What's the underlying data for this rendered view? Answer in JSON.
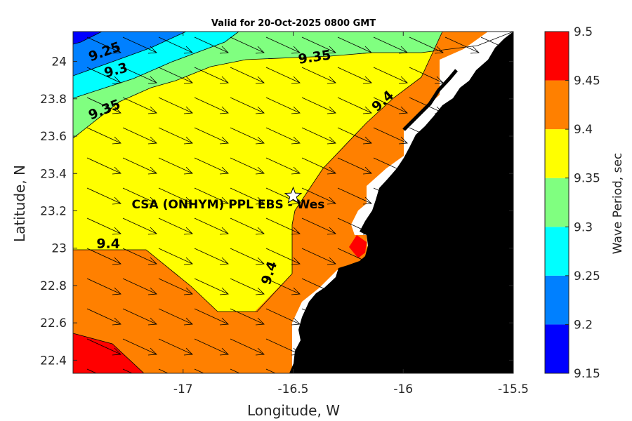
{
  "chart_data": {
    "type": "contour-map",
    "title": "Valid for 20-Oct-2025 0800 GMT",
    "xlabel": "Longitude, W",
    "ylabel": "Latitude, N",
    "xlim": [
      -17.5,
      -15.5
    ],
    "ylim": [
      22.33,
      24.16
    ],
    "xticks": [
      -17,
      -16.5,
      -16,
      -15.5
    ],
    "xtick_labels": [
      "-17",
      "-16.5",
      "-16",
      "-15.5"
    ],
    "yticks": [
      22.4,
      22.6,
      22.8,
      23.0,
      23.2,
      23.4,
      23.6,
      23.8,
      24.0
    ],
    "ytick_labels": [
      "22.4",
      "22.6",
      "22.8",
      "23",
      "23.2",
      "23.4",
      "23.6",
      "23.8",
      "24"
    ],
    "colorbar": {
      "label": "Wave Period, sec",
      "levels": [
        9.15,
        9.2,
        9.25,
        9.3,
        9.35,
        9.4,
        9.45,
        9.5
      ],
      "level_labels": [
        "9.15",
        "9.2",
        "9.25",
        "9.3",
        "9.35",
        "9.4",
        "9.45",
        "9.5"
      ],
      "colors": [
        "#0000ff",
        "#0080ff",
        "#00ffff",
        "#80ff80",
        "#ffff00",
        "#ff8000",
        "#ff0000"
      ]
    },
    "contour_labels": [
      {
        "text": "9.25",
        "lon": -17.35,
        "lat": 24.03,
        "angle": -20
      },
      {
        "text": "9.3",
        "lon": -17.3,
        "lat": 23.93,
        "angle": -15
      },
      {
        "text": "9.35",
        "lon": -17.35,
        "lat": 23.72,
        "angle": -22
      },
      {
        "text": "9.35",
        "lon": -16.4,
        "lat": 24.0,
        "angle": -8
      },
      {
        "text": "9.4",
        "lon": -16.08,
        "lat": 23.77,
        "angle": -42
      },
      {
        "text": "9.4",
        "lon": -17.34,
        "lat": 23.0,
        "angle": 0
      },
      {
        "text": "9.4",
        "lon": -16.59,
        "lat": 22.86,
        "angle": -72
      }
    ],
    "station": {
      "name": "CSA (ONHYM) PPL EBS - Wes",
      "lon": -16.5,
      "lat": 23.28
    },
    "arrow_direction": "toward southeast",
    "land_color": "#000000"
  }
}
